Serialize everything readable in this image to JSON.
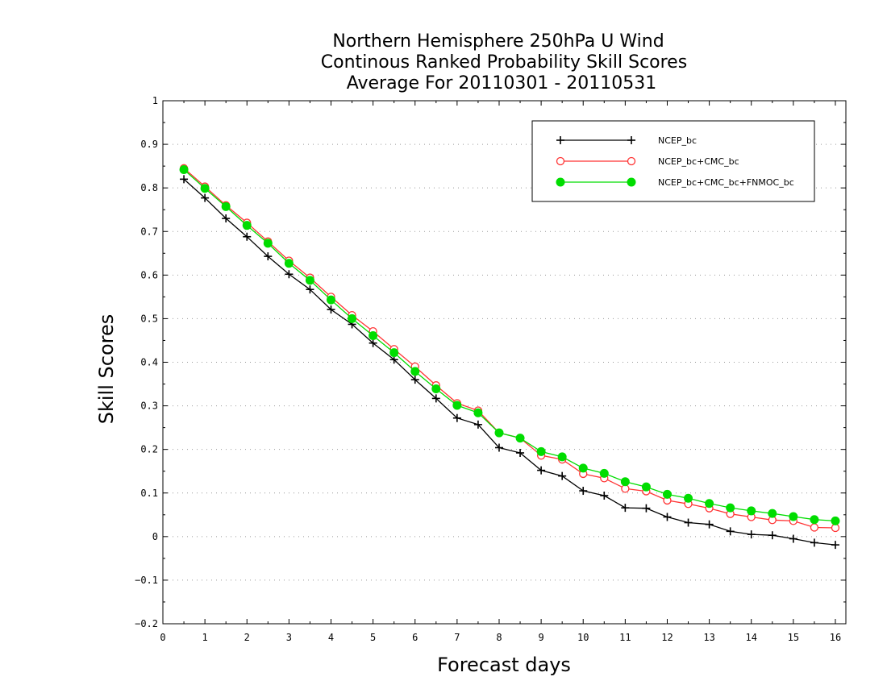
{
  "chart_data": {
    "type": "line",
    "title": [
      "Northern Hemisphere 250hPa U Wind",
      "Continous Ranked Probability Skill Scores",
      "Average For 20110301 - 20110531"
    ],
    "xlabel": "Forecast days",
    "ylabel": "Skill Scores",
    "xlim": [
      0,
      16.25
    ],
    "ylim": [
      -0.2,
      1.0
    ],
    "xticks": [
      0,
      1,
      2,
      3,
      4,
      5,
      6,
      7,
      8,
      9,
      10,
      11,
      12,
      13,
      14,
      15,
      16
    ],
    "yticks": [
      -0.2,
      -0.1,
      0,
      0.1,
      0.2,
      0.3,
      0.4,
      0.5,
      0.6,
      0.7,
      0.8,
      0.9,
      1
    ],
    "ytick_labels": [
      "−0.2",
      "−0.1",
      "0",
      "0.1",
      "0.2",
      "0.3",
      "0.4",
      "0.5",
      "0.6",
      "0.7",
      "0.8",
      "0.9",
      "1"
    ],
    "grid": "horizontal dotted",
    "legend_position": "top-right",
    "x": [
      0.5,
      1,
      1.5,
      2,
      2.5,
      3,
      3.5,
      4,
      4.5,
      5,
      5.5,
      6,
      6.5,
      7,
      7.5,
      8,
      8.5,
      9,
      9.5,
      10,
      10.5,
      11,
      11.5,
      12,
      12.5,
      13,
      13.5,
      14,
      14.5,
      15,
      15.5,
      16
    ],
    "series": [
      {
        "name": "NCEP_bc",
        "color": "#000000",
        "marker": "plus",
        "values": [
          0.82,
          0.777,
          0.73,
          0.688,
          0.643,
          0.602,
          0.567,
          0.521,
          0.487,
          0.444,
          0.406,
          0.36,
          0.317,
          0.272,
          0.257,
          0.204,
          0.192,
          0.152,
          0.139,
          0.105,
          0.094,
          0.066,
          0.065,
          0.045,
          0.032,
          0.028,
          0.012,
          0.005,
          0.003,
          -0.005,
          -0.014,
          -0.019
        ]
      },
      {
        "name": "NCEP_bc+CMC_bc",
        "color": "#ff3333",
        "marker": "open-circle",
        "values": [
          0.845,
          0.803,
          0.76,
          0.72,
          0.677,
          0.633,
          0.594,
          0.55,
          0.508,
          0.471,
          0.43,
          0.39,
          0.347,
          0.306,
          0.289,
          0.238,
          0.226,
          0.186,
          0.177,
          0.144,
          0.134,
          0.11,
          0.104,
          0.083,
          0.075,
          0.065,
          0.052,
          0.045,
          0.038,
          0.036,
          0.021,
          0.02
        ]
      },
      {
        "name": "NCEP_bc+CMC_bc+FNMOC_bc",
        "color": "#00dd00",
        "marker": "filled-circle",
        "values": [
          0.842,
          0.799,
          0.757,
          0.714,
          0.673,
          0.627,
          0.588,
          0.543,
          0.5,
          0.461,
          0.422,
          0.379,
          0.339,
          0.301,
          0.284,
          0.238,
          0.226,
          0.195,
          0.183,
          0.157,
          0.145,
          0.126,
          0.114,
          0.097,
          0.088,
          0.076,
          0.066,
          0.059,
          0.053,
          0.046,
          0.039,
          0.036
        ]
      }
    ]
  }
}
